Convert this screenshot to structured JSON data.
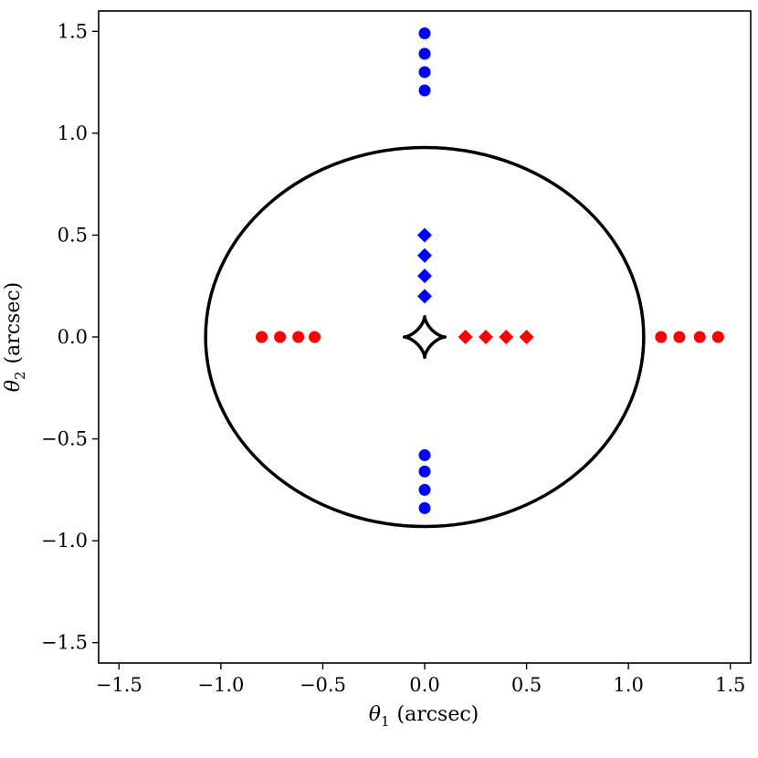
{
  "chart_data": {
    "type": "scatter",
    "title": "",
    "xlabel_symbol": "θ",
    "xlabel_sub": "1",
    "xlabel_unit": "(arcsec)",
    "ylabel_symbol": "θ",
    "ylabel_sub": "2",
    "ylabel_unit": "(arcsec)",
    "xlim": [
      -1.6,
      1.6
    ],
    "ylim": [
      -1.6,
      1.6
    ],
    "xticks": [
      -1.5,
      -1.0,
      -0.5,
      0.0,
      0.5,
      1.0,
      1.5
    ],
    "yticks": [
      -1.5,
      -1.0,
      -0.5,
      0.0,
      0.5,
      1.0,
      1.5
    ],
    "xtick_labels": [
      "−1.5",
      "−1.0",
      "−0.5",
      "0.0",
      "0.5",
      "1.0",
      "1.5"
    ],
    "ytick_labels": [
      "−1.5",
      "−1.0",
      "−0.5",
      "0.0",
      "0.5",
      "1.0",
      "1.5"
    ],
    "grid": false,
    "series": [
      {
        "marker": "circle",
        "color": "#0000ff",
        "points": [
          [
            0.0,
            1.49
          ],
          [
            0.0,
            1.39
          ],
          [
            0.0,
            1.3
          ],
          [
            0.0,
            1.21
          ],
          [
            0.0,
            -0.58
          ],
          [
            0.0,
            -0.66
          ],
          [
            0.0,
            -0.75
          ],
          [
            0.0,
            -0.84
          ]
        ]
      },
      {
        "marker": "diamond",
        "color": "#0000ff",
        "points": [
          [
            0.0,
            0.5
          ],
          [
            0.0,
            0.4
          ],
          [
            0.0,
            0.3
          ],
          [
            0.0,
            0.2
          ]
        ]
      },
      {
        "marker": "circle",
        "color": "#ff0000",
        "points": [
          [
            -0.8,
            0.0
          ],
          [
            -0.71,
            0.0
          ],
          [
            -0.62,
            0.0
          ],
          [
            -0.54,
            0.0
          ],
          [
            1.16,
            0.0
          ],
          [
            1.25,
            0.0
          ],
          [
            1.35,
            0.0
          ],
          [
            1.44,
            0.0
          ]
        ]
      },
      {
        "marker": "diamond",
        "color": "#ff0000",
        "points": [
          [
            0.2,
            0.0
          ],
          [
            0.3,
            0.0
          ],
          [
            0.4,
            0.0
          ],
          [
            0.5,
            0.0
          ]
        ]
      }
    ],
    "curves": [
      {
        "shape": "ellipse",
        "color": "#000000",
        "center": [
          0.0,
          0.0
        ],
        "a": 1.075,
        "b": 0.93
      },
      {
        "shape": "astroid",
        "color": "#000000",
        "center": [
          0.0,
          0.0
        ],
        "a": 0.1,
        "b": 0.1
      }
    ]
  }
}
